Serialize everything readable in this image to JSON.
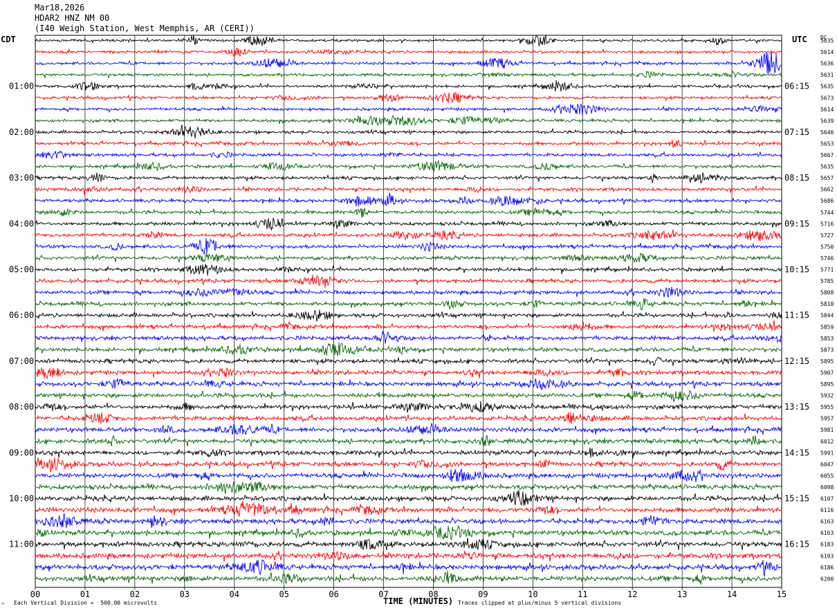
{
  "header": {
    "date": "Mar18,2026",
    "station": "HDAR2 HNZ NM 00",
    "location": "(I40 Weigh Station, West Memphis, AR (CERI))"
  },
  "left_timezone": "CDT",
  "right_timezone": "UTC",
  "dc_label": "DC",
  "footer": {
    "vertical_division": "Each Vertical Division =  500.00 microvolts",
    "clip_note": "Traces clipped at plus/minus 5 vertical divisions",
    "corner_mark": "^"
  },
  "chart_data": {
    "type": "line",
    "title": "",
    "xlabel": "TIME (MINUTES)",
    "xlim": [
      0,
      15
    ],
    "x_ticks": [
      "00",
      "01",
      "02",
      "03",
      "04",
      "05",
      "06",
      "07",
      "08",
      "09",
      "10",
      "11",
      "12",
      "13",
      "14",
      "15"
    ],
    "rows_per_hour": 4,
    "trace_colors": [
      "#000000",
      "#ff0000",
      "#0000ff",
      "#006400"
    ],
    "left_hour_labels": [
      "01:00",
      "02:00",
      "03:00",
      "04:00",
      "05:00",
      "06:00",
      "07:00",
      "08:00",
      "09:00",
      "10:00",
      "11:00"
    ],
    "right_hour_labels": [
      "06:15",
      "07:15",
      "08:15",
      "09:15",
      "10:15",
      "11:15",
      "12:15",
      "13:15",
      "14:15",
      "15:15",
      "16:15"
    ],
    "dc_offsets": [
      5635,
      5614,
      5636,
      5631,
      5635,
      5673,
      5614,
      5639,
      5640,
      5653,
      5667,
      5635,
      5657,
      5662,
      5686,
      5744,
      5716,
      5727,
      5750,
      5746,
      5771,
      5785,
      5808,
      5810,
      5844,
      5859,
      5853,
      5873,
      5895,
      5907,
      5895,
      5932,
      5955,
      5957,
      5981,
      6012,
      5991,
      6047,
      6055,
      6098,
      6107,
      6116,
      6163,
      6163,
      6183,
      6193,
      6186,
      6200
    ]
  }
}
